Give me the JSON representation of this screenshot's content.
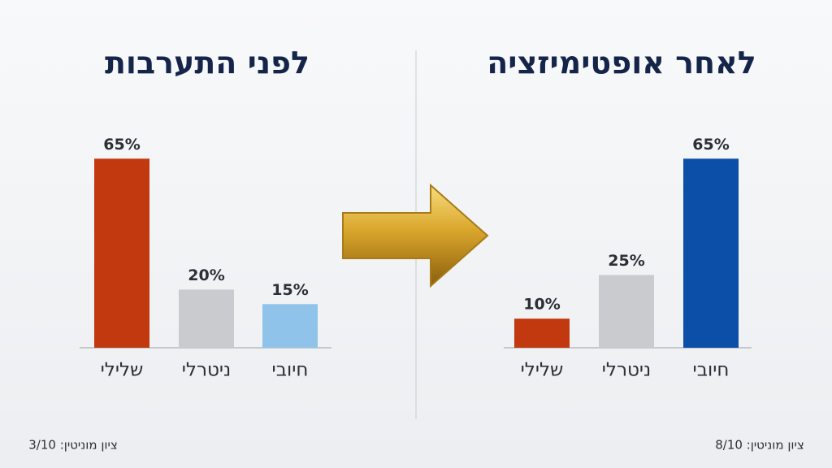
{
  "chart_data": [
    {
      "type": "bar",
      "title": "לפני התערבות",
      "categories": [
        "שלילי",
        "ניטרלי",
        "חיובי"
      ],
      "values": [
        65,
        20,
        15
      ],
      "value_labels": [
        "65%",
        "20%",
        "15%"
      ],
      "colors": [
        "#c2380f",
        "#c9cbcf",
        "#8fc3ea"
      ],
      "footnote": "ציון מוניטין: 3/10"
    },
    {
      "type": "bar",
      "title": "לאחר אופטימיזציה",
      "categories": [
        "שלילי",
        "ניטרלי",
        "חיובי"
      ],
      "values": [
        10,
        25,
        65
      ],
      "value_labels": [
        "10%",
        "25%",
        "65%"
      ],
      "colors": [
        "#c2380f",
        "#c9cbcf",
        "#0c4fa8"
      ],
      "footnote": "ציון מוניטין: 8/10"
    }
  ]
}
